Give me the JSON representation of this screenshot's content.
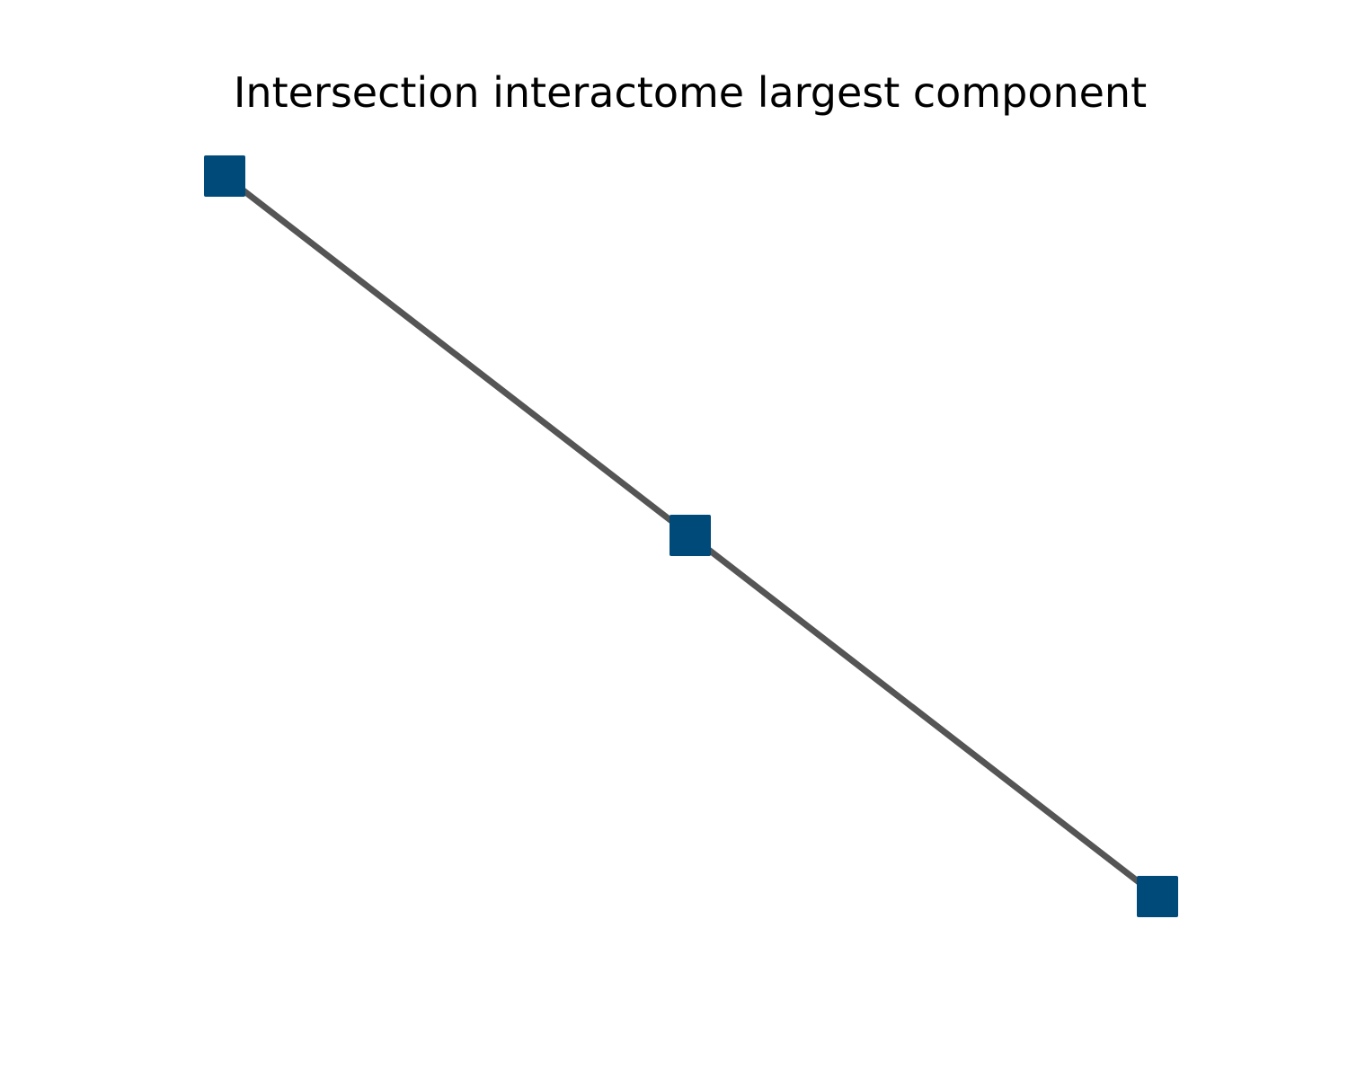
{
  "title": "Intersection interactome largest component",
  "colors": {
    "node": "#004a7a",
    "edge": "#555555",
    "background": "#ffffff"
  },
  "graph": {
    "node_shape": "square",
    "node_count": 3,
    "edge_count": 2,
    "nodes": [
      {
        "id": "n1"
      },
      {
        "id": "n2"
      },
      {
        "id": "n3"
      }
    ],
    "edges": [
      {
        "source": "n1",
        "target": "n2"
      },
      {
        "source": "n2",
        "target": "n3"
      }
    ]
  }
}
